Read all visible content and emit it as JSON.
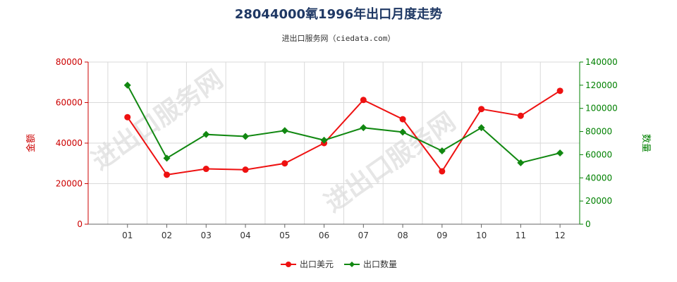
{
  "chart_data": {
    "type": "line",
    "title": "28044000氧1996年出口月度走势",
    "subtitle": "进出口服务网（ciedata.com）",
    "watermark": "进出口服务网",
    "categories": [
      "01",
      "02",
      "03",
      "04",
      "05",
      "06",
      "07",
      "08",
      "09",
      "10",
      "11",
      "12"
    ],
    "left_axis": {
      "label": "金额",
      "min": 0,
      "max": 80000,
      "ticks": [
        0,
        20000,
        40000,
        60000,
        80000
      ],
      "color": "#cc0000"
    },
    "right_axis": {
      "label": "数量",
      "min": 0,
      "max": 140000,
      "ticks": [
        0,
        20000,
        40000,
        60000,
        80000,
        100000,
        120000,
        140000
      ],
      "color": "#008000"
    },
    "grid": true,
    "legend_position": "bottom",
    "series": [
      {
        "name": "出口美元",
        "axis": "left",
        "color": "#ee1111",
        "values": [
          52800,
          24400,
          27300,
          26900,
          30000,
          40000,
          61300,
          51800,
          26100,
          56800,
          53500,
          65800
        ]
      },
      {
        "name": "出口数量",
        "axis": "right",
        "color": "#118811",
        "values": [
          120000,
          57000,
          77500,
          75800,
          80800,
          72500,
          83300,
          79500,
          63300,
          83300,
          53000,
          61500
        ]
      }
    ]
  }
}
